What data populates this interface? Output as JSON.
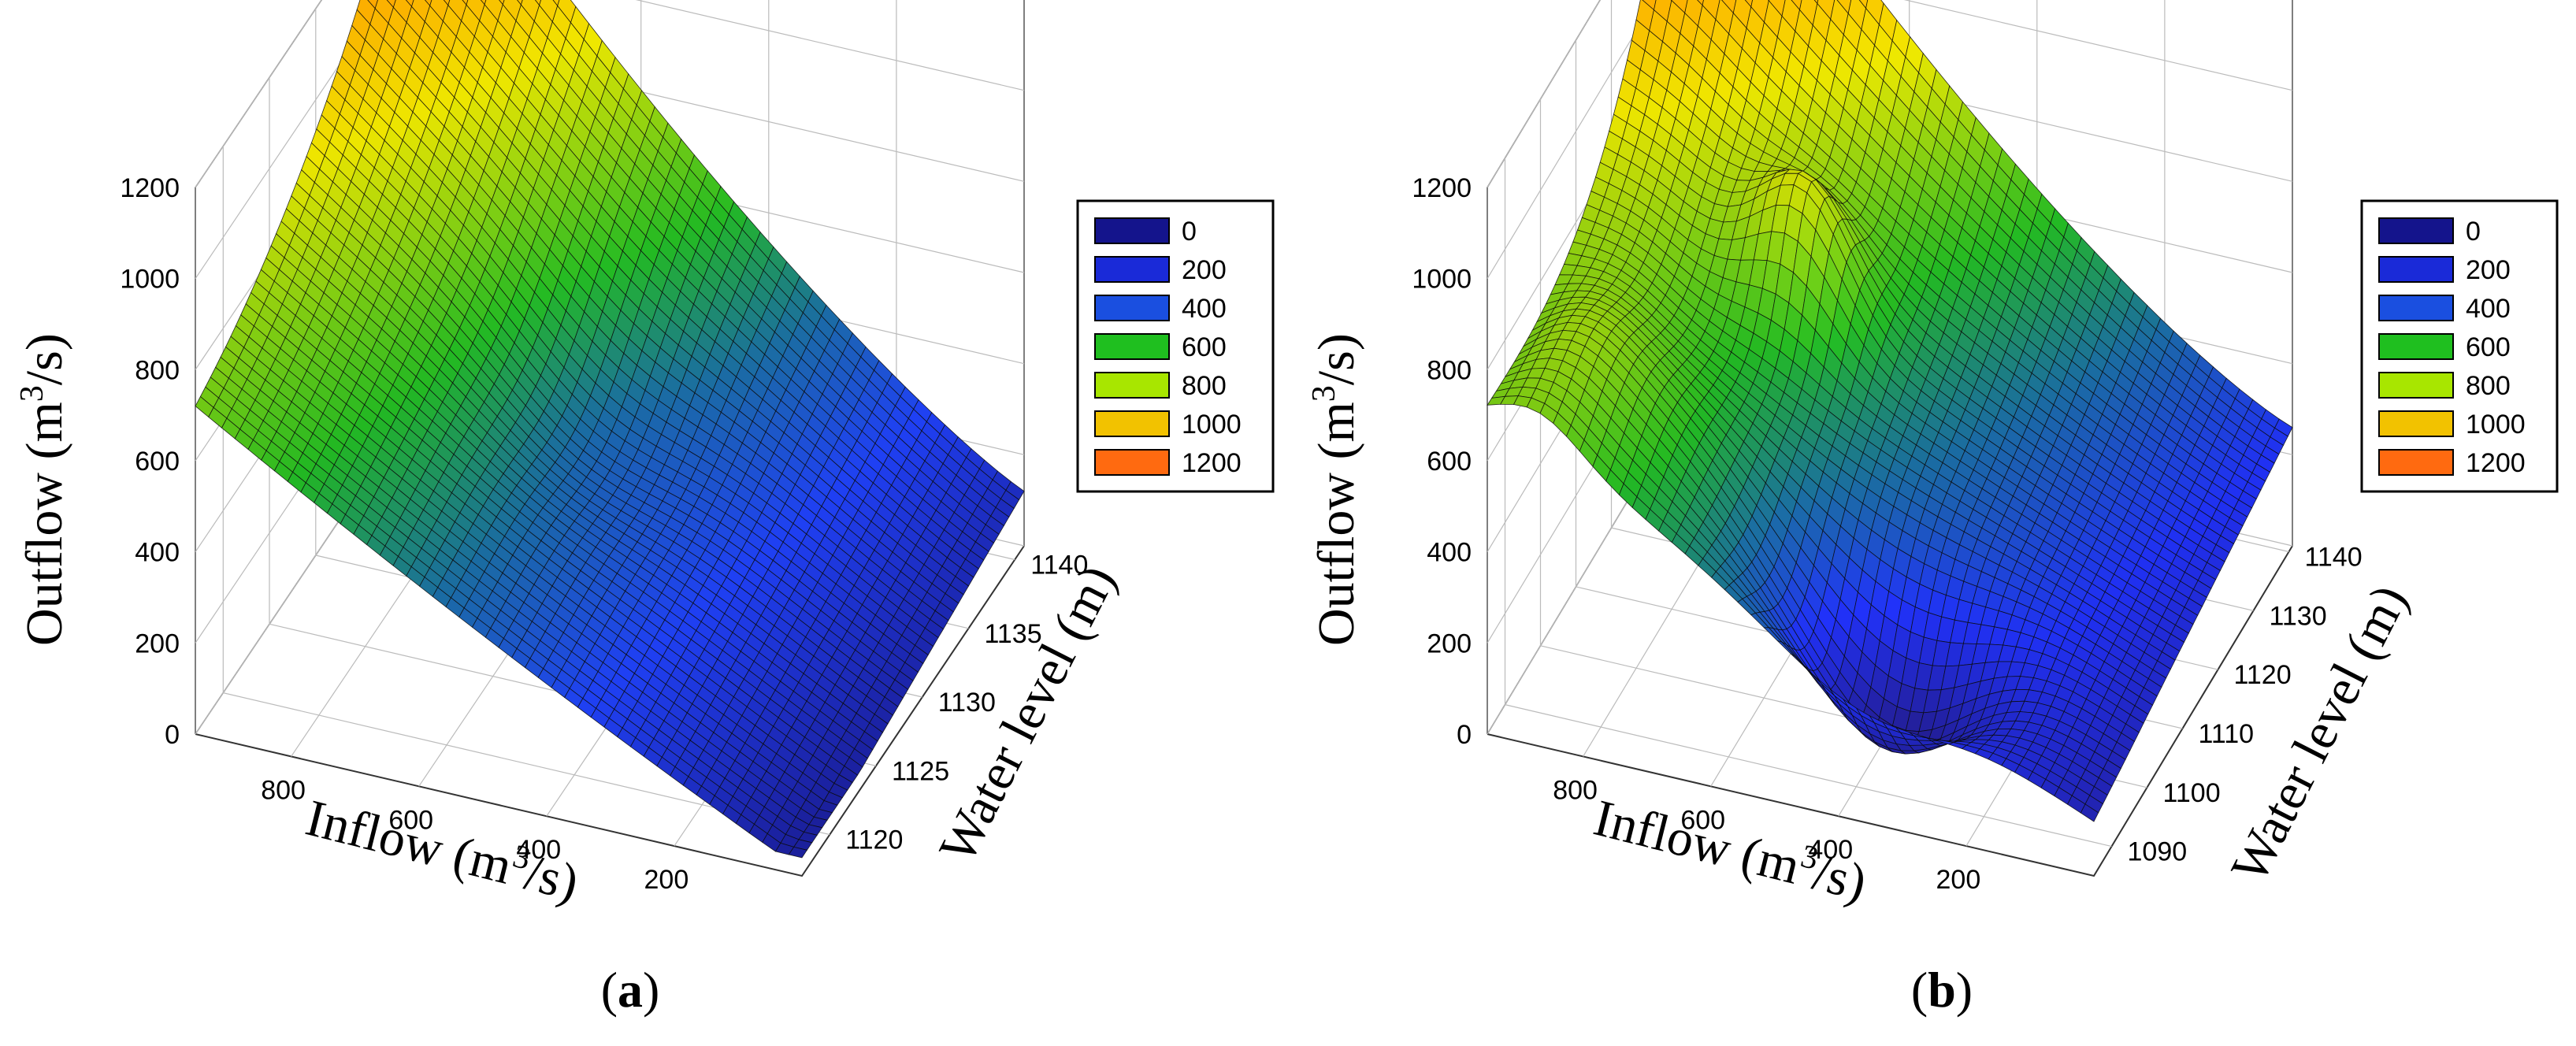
{
  "figure": {
    "panels": [
      {
        "label_open": "(",
        "label_letter": "a",
        "label_close": ")",
        "surface_variant": "smooth",
        "colors": {
          "low": "#1a1a8c",
          "mid_blue": "#1f3ff0",
          "teal": "#1a6aa0",
          "green": "#22b522",
          "yellow": "#e8e000",
          "orange": "#ff7a00"
        }
      },
      {
        "label_open": "(",
        "label_letter": "b",
        "label_close": ")",
        "surface_variant": "rugged",
        "colors": {
          "low": "#23166e",
          "mid_blue": "#2030f0",
          "teal": "#1a6aa0",
          "green": "#22b522",
          "yellow": "#e8e000",
          "orange": "#ff7a00"
        }
      }
    ]
  },
  "chart_data": [
    {
      "type": "surface3d",
      "title": "",
      "zlabel": "Outflow (m³/s)",
      "zlabel_parts": {
        "main": "Outflow (m",
        "sup": "3",
        "rest": "/s)"
      },
      "xlabel": "Inflow (m³/s)",
      "xlabel_parts": {
        "main": "Inflow (m",
        "sup": "3",
        "rest": "/s)"
      },
      "ylabel": "Water level (m)",
      "z_ticks": [
        "0",
        "200",
        "400",
        "600",
        "800",
        "1000",
        "1200"
      ],
      "x_ticks": [
        "800",
        "600",
        "400",
        "200"
      ],
      "y_ticks": [
        "1120",
        "1125",
        "1130",
        "1135",
        "1140"
      ],
      "zlim": [
        0,
        1200
      ],
      "xlim": [
        0,
        950
      ],
      "ylim": [
        1117,
        1141
      ],
      "legend": {
        "position": "right",
        "entries": [
          {
            "label": "0",
            "color": "#14148c"
          },
          {
            "label": "200",
            "color": "#1a2ad8"
          },
          {
            "label": "400",
            "color": "#1a4fe0"
          },
          {
            "label": "600",
            "color": "#1fbf1f"
          },
          {
            "label": "800",
            "color": "#a8e600"
          },
          {
            "label": "1000",
            "color": "#f2c200"
          },
          {
            "label": "1200",
            "color": "#ff6a10"
          }
        ]
      }
    },
    {
      "type": "surface3d",
      "title": "",
      "zlabel": "Outflow (m³/s)",
      "zlabel_parts": {
        "main": "Outflow (m",
        "sup": "3",
        "rest": "/s)"
      },
      "xlabel": "Inflow (m³/s)",
      "xlabel_parts": {
        "main": "Inflow (m",
        "sup": "3",
        "rest": "/s)"
      },
      "ylabel": "Water level (m)",
      "z_ticks": [
        "0",
        "200",
        "400",
        "600",
        "800",
        "1000",
        "1200"
      ],
      "x_ticks": [
        "800",
        "600",
        "400",
        "200"
      ],
      "y_ticks": [
        "1090",
        "1100",
        "1110",
        "1120",
        "1130",
        "1140"
      ],
      "zlim": [
        0,
        1200
      ],
      "xlim": [
        0,
        950
      ],
      "ylim": [
        1085,
        1141
      ],
      "legend": {
        "position": "right",
        "entries": [
          {
            "label": "0",
            "color": "#14148c"
          },
          {
            "label": "200",
            "color": "#1a2ad8"
          },
          {
            "label": "400",
            "color": "#1a4fe0"
          },
          {
            "label": "600",
            "color": "#1fbf1f"
          },
          {
            "label": "800",
            "color": "#a8e600"
          },
          {
            "label": "1000",
            "color": "#f2c200"
          },
          {
            "label": "1200",
            "color": "#ff6a10"
          }
        ]
      }
    }
  ]
}
